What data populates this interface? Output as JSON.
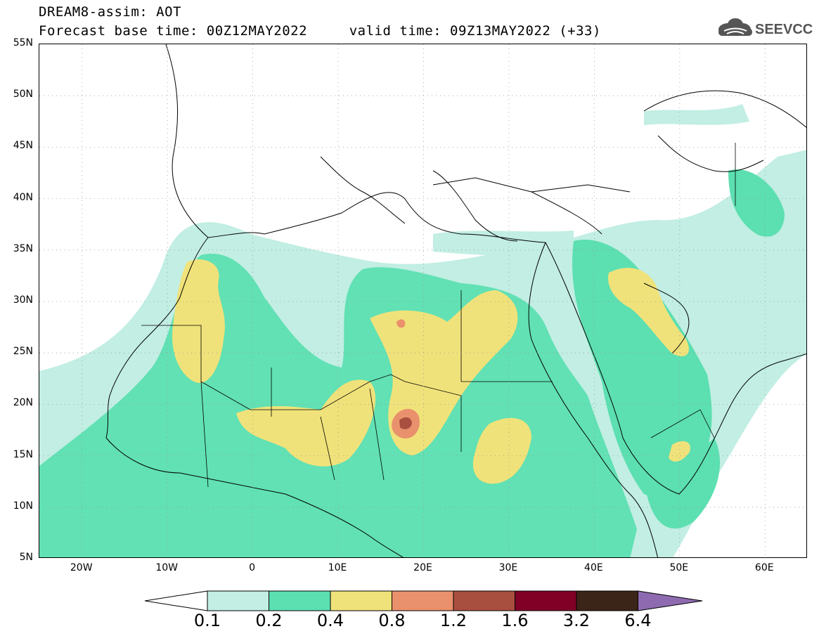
{
  "title": {
    "line1": "DREAM8-assim: AOT",
    "line2": "Forecast base time: 00Z12MAY2022     valid time: 09Z13MAY2022 (+33)"
  },
  "logo": {
    "text": "SEEVCCC",
    "icon": "cloud-icon"
  },
  "axes": {
    "y_labels": [
      "55N",
      "50N",
      "45N",
      "40N",
      "35N",
      "30N",
      "25N",
      "20N",
      "15N",
      "10N",
      "5N"
    ],
    "x_labels": [
      "20W",
      "10W",
      "0",
      "10E",
      "20E",
      "30E",
      "40E",
      "50E",
      "60E"
    ],
    "lon_range": [
      -25,
      65
    ],
    "lat_range": [
      5,
      55
    ]
  },
  "colorbar": {
    "labels": [
      "0.1",
      "0.2",
      "0.4",
      "0.8",
      "1.2",
      "1.6",
      "3.2",
      "6.4"
    ],
    "colors": [
      "#ffffff",
      "#c2eee3",
      "#5cdfb1",
      "#f0e27a",
      "#e9916c",
      "#a94f40",
      "#800026",
      "#3b2518",
      "#8e6bb0"
    ]
  }
}
